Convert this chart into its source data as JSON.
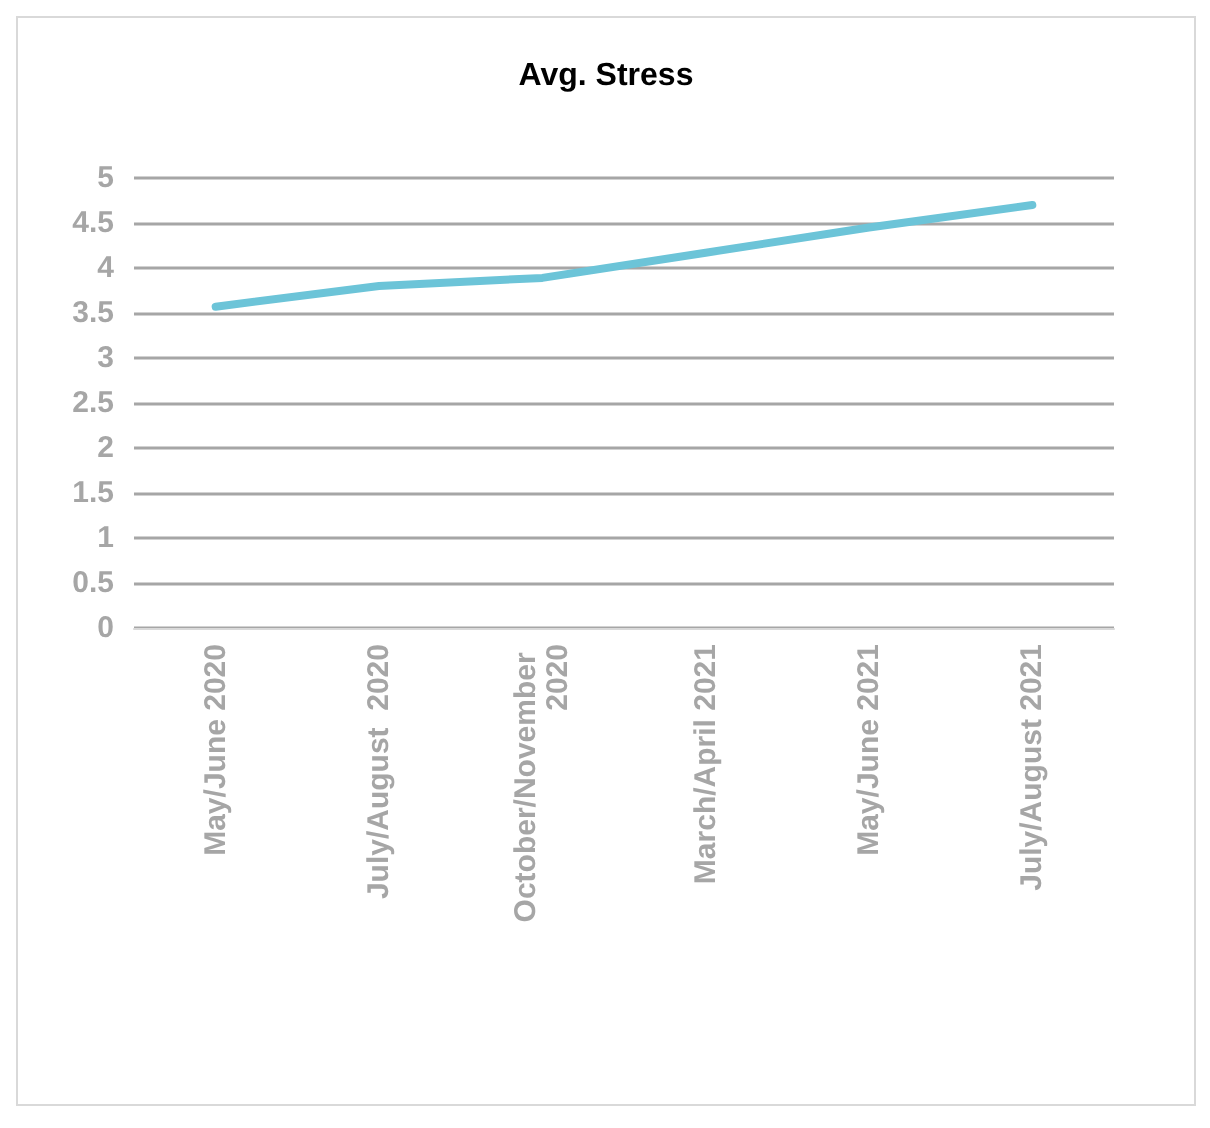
{
  "chart_data": {
    "type": "line",
    "title": "Avg. Stress",
    "categories": [
      "May/June 2020",
      "July/August  2020",
      "October/November 2020",
      "March/April 2021",
      "May/June 2021",
      "July/August 2021"
    ],
    "series": [
      {
        "color": "#6cc4d8",
        "values": [
          3.57,
          3.8,
          3.89,
          4.17,
          4.45,
          4.7
        ]
      }
    ],
    "ylim": [
      0,
      5
    ],
    "yticks": [
      0,
      0.5,
      1,
      1.5,
      2,
      2.5,
      3,
      3.5,
      4,
      4.5,
      5
    ],
    "grid": "y",
    "marker": "none",
    "line_style": "solid"
  }
}
